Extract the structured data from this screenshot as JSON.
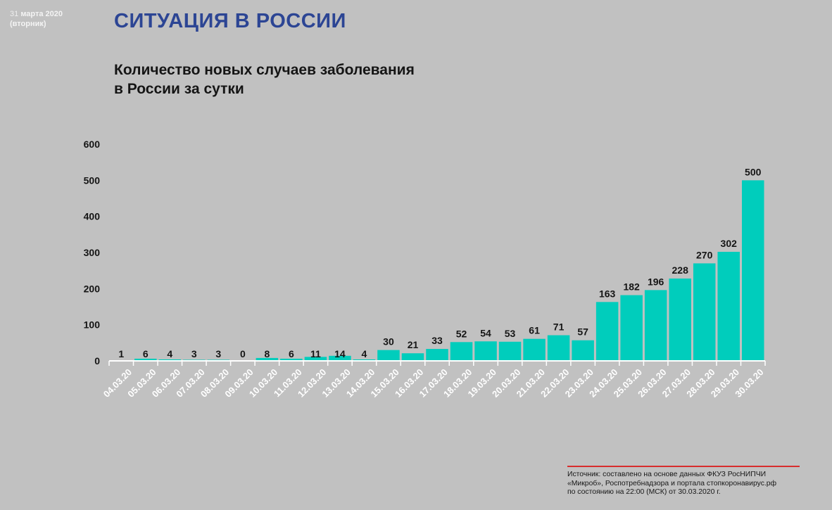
{
  "header": {
    "date_day": "31",
    "date_month_year": "марта 2020",
    "weekday": "(вторник)",
    "title": "СИТУАЦИЯ В РОССИИ",
    "subtitle_line1": "Количество новых случаев заболевания",
    "subtitle_line2": "в России за сутки"
  },
  "source": {
    "line1": "Источник: составлено на основе данных ФКУЗ РосНИПЧИ",
    "line2": "«Микроб», Роспотребнадзора и портала стопкоронавирус.рф",
    "line3": "по состоянию на 22:00 (МСК) от 30.03.2020 г."
  },
  "colors": {
    "background": "#c1c1c1",
    "title": "#2c4594",
    "bar": "#00cdbc",
    "text": "#151515",
    "axis_labels": "#ffffff",
    "source_rule": "#d82d2d"
  },
  "chart_data": {
    "type": "bar",
    "title": "Количество новых случаев заболевания в России за сутки",
    "xlabel": "",
    "ylabel": "",
    "ylim": [
      0,
      600
    ],
    "yticks": [
      0,
      100,
      200,
      300,
      400,
      500,
      600
    ],
    "categories": [
      "04.03.20",
      "05.03.20",
      "06.03.20",
      "07.03.20",
      "08.03.20",
      "09.03.20",
      "10.03.20",
      "11.03.20",
      "12.03.20",
      "13.03.20",
      "14.03.20",
      "15.03.20",
      "16.03.20",
      "17.03.20",
      "18.03.20",
      "19.03.20",
      "20.03.20",
      "21.03.20",
      "22.03.20",
      "23.03.20",
      "24.03.20",
      "25.03.20",
      "26.03.20",
      "27.03.20",
      "28.03.20",
      "29.03.20",
      "30.03.20"
    ],
    "values": [
      1,
      6,
      4,
      3,
      3,
      0,
      8,
      6,
      11,
      14,
      4,
      30,
      21,
      33,
      52,
      54,
      53,
      61,
      71,
      57,
      163,
      182,
      196,
      228,
      270,
      302,
      500
    ],
    "grid": false,
    "legend": "none"
  }
}
